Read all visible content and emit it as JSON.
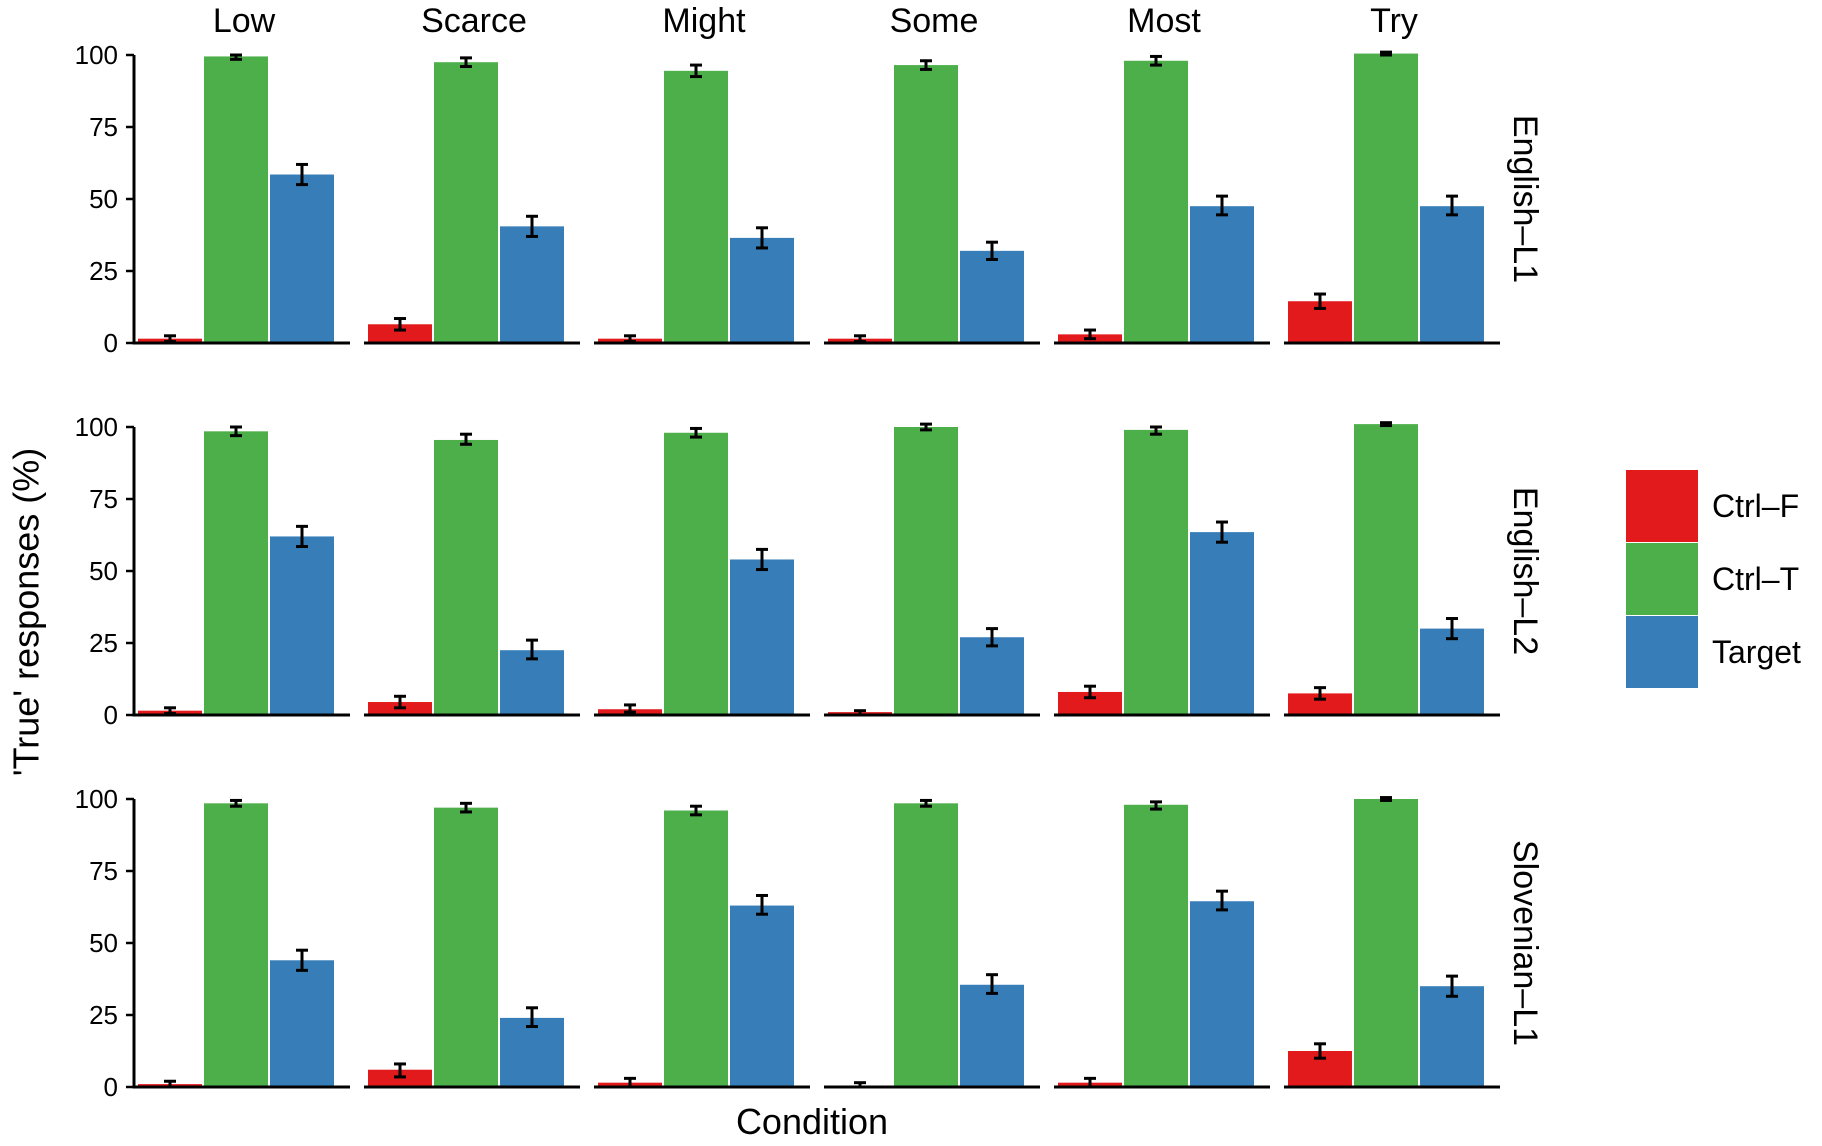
{
  "chart_data": {
    "type": "bar",
    "facet_columns": [
      "Low",
      "Scarce",
      "Might",
      "Some",
      "Most",
      "Try"
    ],
    "facet_rows": [
      "English–L1",
      "English–L2",
      "Slovenian–L1"
    ],
    "series_names": [
      "Ctrl–F",
      "Ctrl–T",
      "Target"
    ],
    "colors": {
      "Ctrl–F": "#e31a1c",
      "Ctrl–T": "#4daf4a",
      "Target": "#377eb8"
    },
    "xlabel": "Condition",
    "ylabel": "'True' responses (%)",
    "ylim": [
      0,
      100
    ],
    "yticks": [
      0,
      25,
      50,
      75,
      100
    ],
    "grid": false,
    "legend_position": "right",
    "panels": [
      {
        "row": "English–L1",
        "col": "Low",
        "values": [
          1.5,
          99.5,
          58.5
        ],
        "errors": [
          [
            0.5,
            2.5
          ],
          [
            98.5,
            100
          ],
          [
            55,
            62
          ]
        ]
      },
      {
        "row": "English–L1",
        "col": "Scarce",
        "values": [
          6.5,
          97.5,
          40.5
        ],
        "errors": [
          [
            4.5,
            8.5
          ],
          [
            96,
            99
          ],
          [
            37,
            44
          ]
        ]
      },
      {
        "row": "English–L1",
        "col": "Might",
        "values": [
          1.5,
          94.5,
          36.5
        ],
        "errors": [
          [
            0.5,
            2.5
          ],
          [
            92.5,
            96.5
          ],
          [
            33,
            40
          ]
        ]
      },
      {
        "row": "English–L1",
        "col": "Some",
        "values": [
          1.5,
          96.5,
          32
        ],
        "errors": [
          [
            0.5,
            2.5
          ],
          [
            95,
            98
          ],
          [
            29,
            35
          ]
        ]
      },
      {
        "row": "English–L1",
        "col": "Most",
        "values": [
          3,
          98,
          47.5
        ],
        "errors": [
          [
            1.5,
            4.5
          ],
          [
            96.5,
            99.5
          ],
          [
            44.5,
            51
          ]
        ]
      },
      {
        "row": "English–L1",
        "col": "Try",
        "values": [
          14.5,
          100.5,
          47.5
        ],
        "errors": [
          [
            12,
            17
          ],
          [
            100,
            101
          ],
          [
            44.5,
            51
          ]
        ]
      },
      {
        "row": "English–L2",
        "col": "Low",
        "values": [
          1.5,
          98.5,
          62
        ],
        "errors": [
          [
            0.5,
            2.5
          ],
          [
            97,
            100
          ],
          [
            58.5,
            65.5
          ]
        ]
      },
      {
        "row": "English–L2",
        "col": "Scarce",
        "values": [
          4.5,
          95.5,
          22.5
        ],
        "errors": [
          [
            2.5,
            6.5
          ],
          [
            94,
            97.5
          ],
          [
            19.5,
            26
          ]
        ]
      },
      {
        "row": "English–L2",
        "col": "Might",
        "values": [
          2,
          98,
          54
        ],
        "errors": [
          [
            1,
            3.5
          ],
          [
            96.5,
            99.5
          ],
          [
            50.5,
            57.5
          ]
        ]
      },
      {
        "row": "English–L2",
        "col": "Some",
        "values": [
          1,
          100,
          27
        ],
        "errors": [
          [
            0,
            1.5
          ],
          [
            99,
            101
          ],
          [
            24,
            30
          ]
        ]
      },
      {
        "row": "English–L2",
        "col": "Most",
        "values": [
          8,
          99,
          63.5
        ],
        "errors": [
          [
            6,
            10
          ],
          [
            97.5,
            100
          ],
          [
            60,
            67
          ]
        ]
      },
      {
        "row": "English–L2",
        "col": "Try",
        "values": [
          7.5,
          101,
          30
        ],
        "errors": [
          [
            5.5,
            9.5
          ],
          [
            100.5,
            101.5
          ],
          [
            26.5,
            33.5
          ]
        ]
      },
      {
        "row": "Slovenian–L1",
        "col": "Low",
        "values": [
          1,
          98.5,
          44
        ],
        "errors": [
          [
            0,
            2
          ],
          [
            97.5,
            99.5
          ],
          [
            40.5,
            47.5
          ]
        ]
      },
      {
        "row": "Slovenian–L1",
        "col": "Scarce",
        "values": [
          6,
          97,
          24
        ],
        "errors": [
          [
            3.5,
            8
          ],
          [
            95.5,
            98.5
          ],
          [
            21,
            27.5
          ]
        ]
      },
      {
        "row": "Slovenian–L1",
        "col": "Might",
        "values": [
          1.5,
          96,
          63
        ],
        "errors": [
          [
            0,
            3
          ],
          [
            94.5,
            97.5
          ],
          [
            60,
            66.5
          ]
        ]
      },
      {
        "row": "Slovenian–L1",
        "col": "Some",
        "values": [
          0.5,
          98.5,
          35.5
        ],
        "errors": [
          [
            0,
            1.5
          ],
          [
            97.5,
            99.5
          ],
          [
            32.5,
            39
          ]
        ]
      },
      {
        "row": "Slovenian–L1",
        "col": "Most",
        "values": [
          1.5,
          98,
          64.5
        ],
        "errors": [
          [
            0,
            3
          ],
          [
            96.5,
            99
          ],
          [
            61.5,
            68
          ]
        ]
      },
      {
        "row": "Slovenian–L1",
        "col": "Try",
        "values": [
          12.5,
          100,
          35
        ],
        "errors": [
          [
            10,
            15
          ],
          [
            99.5,
            100.5
          ],
          [
            31.5,
            38.5
          ]
        ]
      }
    ]
  }
}
